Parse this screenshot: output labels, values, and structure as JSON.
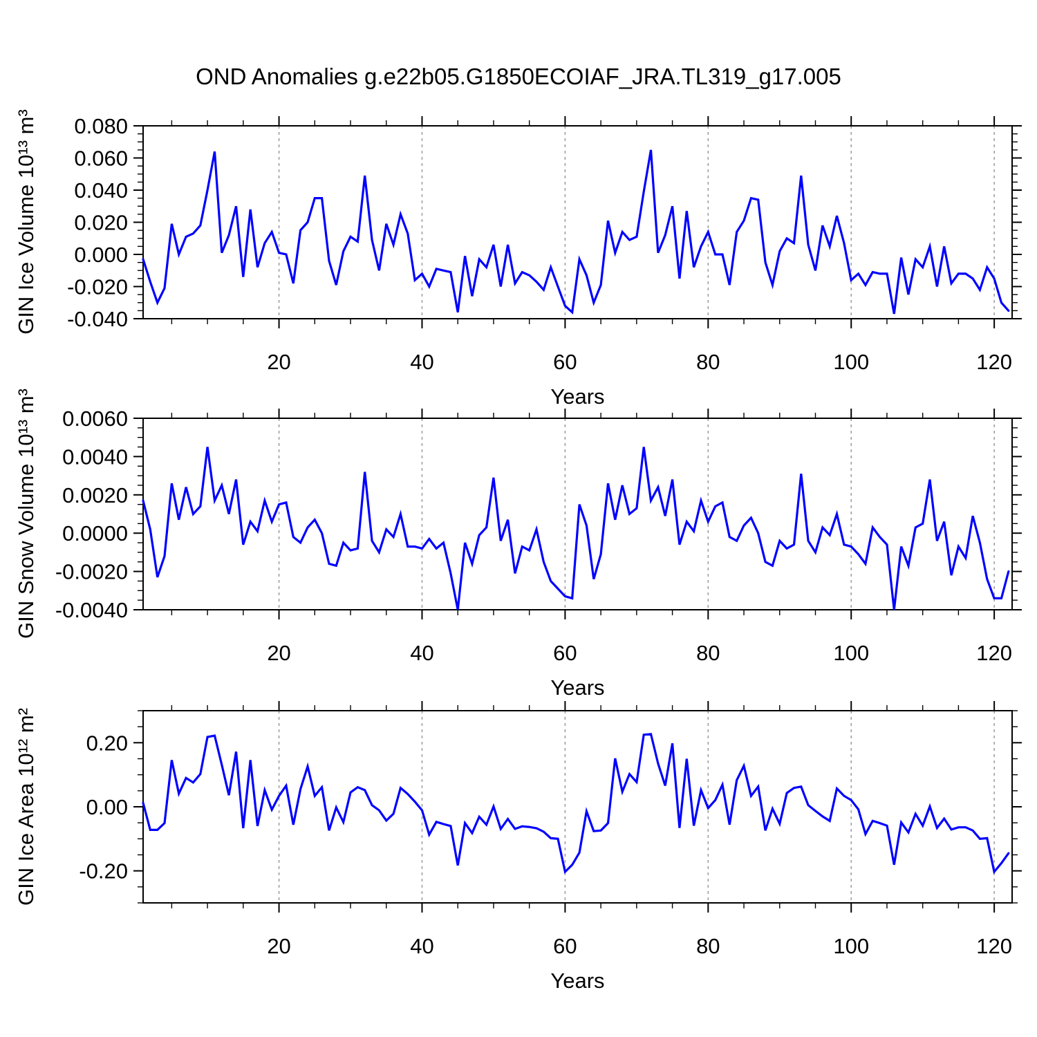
{
  "title": "OND Anomalies g.e22b05.G1850ECOIAF_JRA.TL319_g17.005",
  "xlabel": "Years",
  "colors": {
    "line": "#0000ff",
    "grid": "#999999",
    "axis": "#000000",
    "background": "#ffffff"
  },
  "chart_data": [
    {
      "type": "line",
      "ylabel": "GIN Ice Volume 10¹³ m³",
      "xlabel": "Years",
      "ylim": [
        -0.04,
        0.08
      ],
      "ytick_values": [
        0.08,
        0.06,
        0.04,
        0.02,
        0.0,
        -0.02,
        -0.04
      ],
      "ytick_labels": [
        "0.080",
        "0.060",
        "0.040",
        "0.020",
        "0.000",
        "-0.020",
        "-0.040"
      ],
      "ytick_minor_step": 0.005,
      "x_start": 1,
      "x_end": 122,
      "x_end_plot": 122.5,
      "xticks": [
        20,
        40,
        60,
        80,
        100,
        120
      ],
      "x_minor_step": 5,
      "grid_x": [
        20,
        40,
        60,
        80,
        100,
        120
      ],
      "values": [
        -0.003,
        -0.017,
        -0.03,
        -0.021,
        0.019,
        0.0,
        0.011,
        0.013,
        0.018,
        0.04,
        0.064,
        0.001,
        0.012,
        0.03,
        -0.014,
        0.028,
        -0.008,
        0.007,
        0.014,
        0.001,
        0.0,
        -0.018,
        0.015,
        0.02,
        0.035,
        0.035,
        -0.004,
        -0.019,
        0.002,
        0.011,
        0.008,
        0.049,
        0.009,
        -0.01,
        0.019,
        0.006,
        0.025,
        0.013,
        -0.016,
        -0.012,
        -0.02,
        -0.009,
        -0.01,
        -0.011,
        -0.036,
        -0.001,
        -0.026,
        -0.003,
        -0.008,
        0.006,
        -0.02,
        0.006,
        -0.018,
        -0.011,
        -0.013,
        -0.017,
        -0.022,
        -0.008,
        -0.02,
        -0.032,
        -0.036,
        -0.003,
        -0.013,
        -0.03,
        -0.019,
        0.021,
        0.001,
        0.014,
        0.009,
        0.011,
        0.039,
        0.065,
        0.001,
        0.012,
        0.03,
        -0.015,
        0.027,
        -0.008,
        0.005,
        0.014,
        0.0,
        0.0,
        -0.019,
        0.014,
        0.021,
        0.035,
        0.034,
        -0.005,
        -0.019,
        0.002,
        0.01,
        0.007,
        0.049,
        0.006,
        -0.01,
        0.018,
        0.005,
        0.024,
        0.007,
        -0.016,
        -0.012,
        -0.019,
        -0.011,
        -0.012,
        -0.012,
        -0.037,
        -0.002,
        -0.025,
        -0.003,
        -0.008,
        0.005,
        -0.02,
        0.005,
        -0.018,
        -0.012,
        -0.012,
        -0.015,
        -0.022,
        -0.008,
        -0.015,
        -0.03,
        -0.035
      ]
    },
    {
      "type": "line",
      "ylabel": "GIN Snow Volume 10¹³ m³",
      "xlabel": "Years",
      "ylim": [
        -0.004,
        0.006
      ],
      "ytick_values": [
        0.006,
        0.004,
        0.002,
        0.0,
        -0.002,
        -0.004
      ],
      "ytick_labels": [
        "0.0060",
        "0.0040",
        "0.0020",
        "0.0000",
        "-0.0020",
        "-0.0040"
      ],
      "ytick_minor_step": 0.0005,
      "x_start": 1,
      "x_end": 122,
      "x_end_plot": 122.5,
      "xticks": [
        20,
        40,
        60,
        80,
        100,
        120
      ],
      "x_minor_step": 5,
      "grid_x": [
        20,
        40,
        60,
        80,
        100,
        120
      ],
      "values": [
        0.0017,
        0.0002,
        -0.0023,
        -0.0012,
        0.0026,
        0.0007,
        0.0024,
        0.001,
        0.0014,
        0.0045,
        0.0017,
        0.0025,
        0.001,
        0.0028,
        -0.0006,
        0.0006,
        0.0001,
        0.0017,
        0.0006,
        0.0015,
        0.0016,
        -0.0002,
        -0.0005,
        0.0003,
        0.0007,
        0.0,
        -0.0016,
        -0.0017,
        -0.0005,
        -0.0009,
        -0.0008,
        0.0032,
        -0.0004,
        -0.001,
        0.0002,
        -0.0002,
        0.001,
        -0.0007,
        -0.0007,
        -0.0008,
        -0.0003,
        -0.0008,
        -0.0005,
        -0.0021,
        -0.004,
        -0.0005,
        -0.0016,
        -0.0001,
        0.0003,
        0.0029,
        -0.0004,
        0.0007,
        -0.0021,
        -0.0007,
        -0.0009,
        0.0002,
        -0.0015,
        -0.0025,
        -0.0029,
        -0.0033,
        -0.0034,
        0.0015,
        0.0004,
        -0.0024,
        -0.0011,
        0.0026,
        0.0007,
        0.0025,
        0.001,
        0.0013,
        0.0045,
        0.0017,
        0.0024,
        0.0009,
        0.0028,
        -0.0006,
        0.0006,
        0.0001,
        0.0017,
        0.0006,
        0.0014,
        0.0016,
        -0.0002,
        -0.0004,
        0.0004,
        0.0008,
        0.0,
        -0.0015,
        -0.0017,
        -0.0004,
        -0.0008,
        -0.0006,
        0.0031,
        -0.0004,
        -0.001,
        0.0003,
        -0.0001,
        0.001,
        -0.0006,
        -0.0007,
        -0.0011,
        -0.0016,
        0.0003,
        -0.0002,
        -0.0006,
        -0.004,
        -0.0007,
        -0.0017,
        0.0003,
        0.0005,
        0.0028,
        -0.0004,
        0.0006,
        -0.0022,
        -0.0007,
        -0.0013,
        0.0009,
        -0.0005,
        -0.0024,
        -0.0034,
        -0.0034,
        -0.002
      ]
    },
    {
      "type": "line",
      "ylabel": "GIN Ice Area 10¹² m²",
      "xlabel": "Years",
      "ylim": [
        -0.3,
        0.3
      ],
      "ytick_values": [
        0.2,
        0.0,
        -0.2
      ],
      "ytick_labels": [
        "0.20",
        "0.00",
        "-0.20"
      ],
      "ytick_minor_step": 0.05,
      "x_start": 1,
      "x_end": 122,
      "x_end_plot": 122.5,
      "xticks": [
        20,
        40,
        60,
        80,
        100,
        120
      ],
      "x_minor_step": 5,
      "grid_x": [
        20,
        40,
        60,
        80,
        100,
        120
      ],
      "values": [
        0.012,
        -0.072,
        -0.072,
        -0.051,
        0.146,
        0.041,
        0.09,
        0.076,
        0.102,
        0.218,
        0.222,
        0.131,
        0.036,
        0.172,
        -0.067,
        0.146,
        -0.06,
        0.052,
        -0.009,
        0.034,
        0.066,
        -0.056,
        0.055,
        0.126,
        0.034,
        0.061,
        -0.074,
        -0.002,
        -0.048,
        0.045,
        0.061,
        0.052,
        0.005,
        -0.011,
        -0.043,
        -0.022,
        0.059,
        0.04,
        0.016,
        -0.011,
        -0.087,
        -0.047,
        -0.054,
        -0.06,
        -0.183,
        -0.051,
        -0.082,
        -0.031,
        -0.056,
        0.001,
        -0.069,
        -0.038,
        -0.069,
        -0.061,
        -0.063,
        -0.067,
        -0.078,
        -0.098,
        -0.1,
        -0.203,
        -0.181,
        -0.143,
        -0.014,
        -0.076,
        -0.074,
        -0.051,
        0.151,
        0.047,
        0.102,
        0.077,
        0.225,
        0.227,
        0.135,
        0.066,
        0.198,
        -0.066,
        0.15,
        -0.059,
        0.052,
        -0.004,
        0.021,
        0.069,
        -0.056,
        0.083,
        0.128,
        0.034,
        0.063,
        -0.074,
        -0.006,
        -0.053,
        0.043,
        0.059,
        0.063,
        0.005,
        -0.013,
        -0.03,
        -0.044,
        0.057,
        0.034,
        0.021,
        -0.008,
        -0.085,
        -0.044,
        -0.051,
        -0.059,
        -0.181,
        -0.049,
        -0.08,
        -0.022,
        -0.059,
        0.001,
        -0.066,
        -0.037,
        -0.071,
        -0.064,
        -0.064,
        -0.074,
        -0.1,
        -0.098,
        -0.203,
        -0.176,
        -0.145
      ]
    }
  ]
}
